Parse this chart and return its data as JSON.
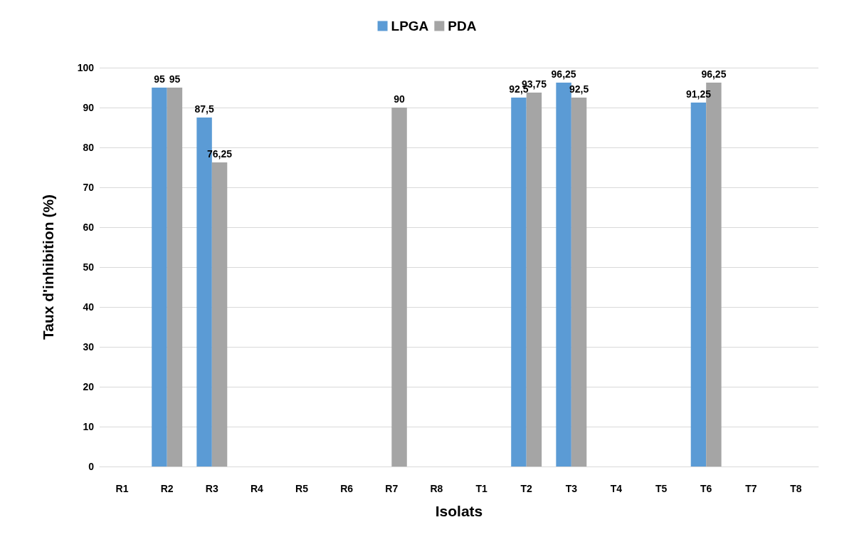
{
  "chart_data": {
    "type": "bar",
    "xlabel": "Isolats",
    "ylabel": "Taux d'inhibition (%)",
    "categories": [
      "R1",
      "R2",
      "R3",
      "R4",
      "R5",
      "R6",
      "R7",
      "R8",
      "T1",
      "T2",
      "T3",
      "T4",
      "T5",
      "T6",
      "T7",
      "T8"
    ],
    "series": [
      {
        "name": "LPGA",
        "color": "#5b9bd5",
        "values": [
          null,
          95,
          87.5,
          null,
          null,
          null,
          null,
          null,
          null,
          92.5,
          96.25,
          null,
          null,
          91.25,
          null,
          null
        ],
        "value_labels": [
          null,
          "95",
          "87,5",
          null,
          null,
          null,
          null,
          null,
          null,
          "92,5",
          "96,25",
          null,
          null,
          "91,25",
          null,
          null
        ]
      },
      {
        "name": "PDA",
        "color": "#a5a5a5",
        "values": [
          null,
          95,
          76.25,
          null,
          null,
          null,
          90,
          null,
          null,
          93.75,
          92.5,
          null,
          null,
          96.25,
          null,
          null
        ],
        "value_labels": [
          null,
          "95",
          "76,25",
          null,
          null,
          null,
          "90",
          null,
          null,
          "93,75",
          "92,5",
          null,
          null,
          "96,25",
          null,
          null
        ]
      }
    ],
    "ylim": [
      0,
      100
    ],
    "yticks": [
      0,
      10,
      20,
      30,
      40,
      50,
      60,
      70,
      80,
      90,
      100
    ],
    "grid": "y",
    "legend": "top"
  }
}
